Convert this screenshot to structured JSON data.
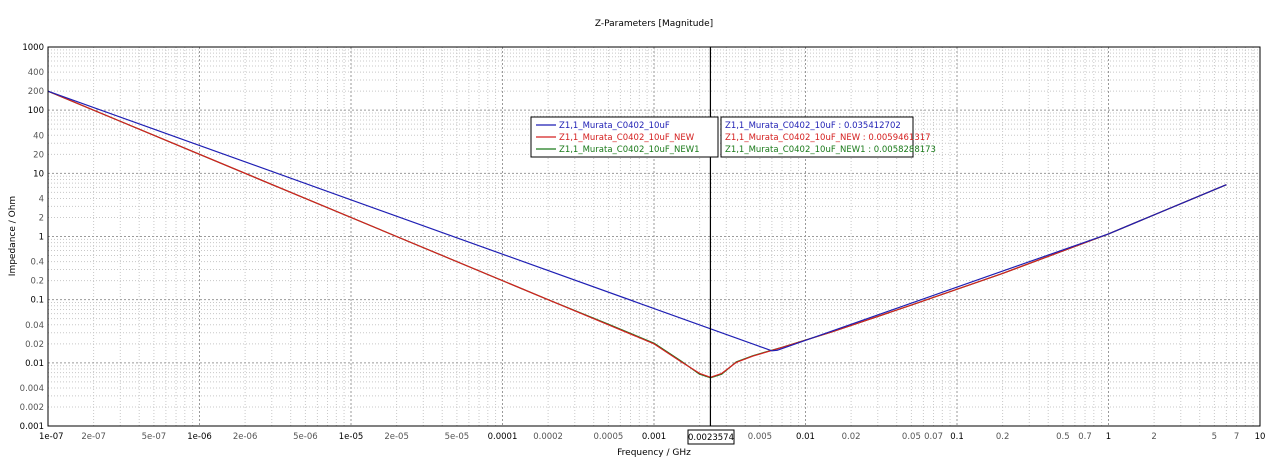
{
  "chart_data": {
    "type": "line",
    "title": "Z-Parameters [Magnitude]",
    "xlabel": "Frequency / GHz",
    "ylabel": "Impedance / Ohm",
    "xscale": "log",
    "yscale": "log",
    "xlim": [
      1e-07,
      10
    ],
    "ylim": [
      0.001,
      1000
    ],
    "grid": true,
    "x_ticks": [
      {
        "value": 1e-07,
        "label": "1e-07",
        "bold": true
      },
      {
        "value": 2e-07,
        "label": "2e-07",
        "bold": false
      },
      {
        "value": 5e-07,
        "label": "5e-07",
        "bold": false
      },
      {
        "value": 1e-06,
        "label": "1e-06",
        "bold": true
      },
      {
        "value": 2e-06,
        "label": "2e-06",
        "bold": false
      },
      {
        "value": 5e-06,
        "label": "5e-06",
        "bold": false
      },
      {
        "value": 1e-05,
        "label": "1e-05",
        "bold": true
      },
      {
        "value": 2e-05,
        "label": "2e-05",
        "bold": false
      },
      {
        "value": 5e-05,
        "label": "5e-05",
        "bold": false
      },
      {
        "value": 0.0001,
        "label": "0.0001",
        "bold": true
      },
      {
        "value": 0.0002,
        "label": "0.0002",
        "bold": false
      },
      {
        "value": 0.0005,
        "label": "0.0005",
        "bold": false
      },
      {
        "value": 0.001,
        "label": "0.001",
        "bold": true
      },
      {
        "value": 0.005,
        "label": "0.005",
        "bold": false
      },
      {
        "value": 0.01,
        "label": "0.01",
        "bold": true
      },
      {
        "value": 0.02,
        "label": "0.02",
        "bold": false
      },
      {
        "value": 0.05,
        "label": "0.05",
        "bold": false
      },
      {
        "value": 0.07,
        "label": "0.07",
        "bold": false
      },
      {
        "value": 0.1,
        "label": "0.1",
        "bold": true
      },
      {
        "value": 0.2,
        "label": "0.2",
        "bold": false
      },
      {
        "value": 0.5,
        "label": "0.5",
        "bold": false
      },
      {
        "value": 0.7,
        "label": "0.7",
        "bold": false
      },
      {
        "value": 1,
        "label": "1",
        "bold": true
      },
      {
        "value": 2,
        "label": "2",
        "bold": false
      },
      {
        "value": 5,
        "label": "5",
        "bold": false
      },
      {
        "value": 7,
        "label": "7",
        "bold": false
      },
      {
        "value": 10,
        "label": "10",
        "bold": true
      }
    ],
    "y_ticks": [
      {
        "value": 1000,
        "label": "1000",
        "bold": true
      },
      {
        "value": 400,
        "label": "400",
        "bold": false
      },
      {
        "value": 200,
        "label": "200",
        "bold": false
      },
      {
        "value": 100,
        "label": "100",
        "bold": true
      },
      {
        "value": 40,
        "label": "40",
        "bold": false
      },
      {
        "value": 20,
        "label": "20",
        "bold": false
      },
      {
        "value": 10,
        "label": "10",
        "bold": true
      },
      {
        "value": 4,
        "label": "4",
        "bold": false
      },
      {
        "value": 2,
        "label": "2",
        "bold": false
      },
      {
        "value": 1,
        "label": "1",
        "bold": true
      },
      {
        "value": 0.4,
        "label": "0.4",
        "bold": false
      },
      {
        "value": 0.2,
        "label": "0.2",
        "bold": false
      },
      {
        "value": 0.1,
        "label": "0.1",
        "bold": true
      },
      {
        "value": 0.04,
        "label": "0.04",
        "bold": false
      },
      {
        "value": 0.02,
        "label": "0.02",
        "bold": false
      },
      {
        "value": 0.01,
        "label": "0.01",
        "bold": true
      },
      {
        "value": 0.004,
        "label": "0.004",
        "bold": false
      },
      {
        "value": 0.002,
        "label": "0.002",
        "bold": false
      },
      {
        "value": 0.001,
        "label": "0.001",
        "bold": true
      }
    ],
    "series": [
      {
        "name": "Z1,1_Murata_C0402_10uF",
        "color": "#1f1fb4",
        "x": [
          1e-07,
          0.006,
          0.0065,
          1,
          6
        ],
        "y": [
          200,
          0.0155,
          0.0158,
          1.1,
          6.6
        ]
      },
      {
        "name": "Z1,1_Murata_C0402_10uF_NEW",
        "color": "#d42020",
        "x": [
          1e-07,
          0.0002,
          0.0005,
          0.001,
          0.0015,
          0.002,
          0.00236,
          0.0028,
          0.0035,
          0.0045,
          0.007,
          0.015,
          0.05,
          0.2,
          1,
          6
        ],
        "y": [
          200,
          0.1,
          0.04,
          0.02,
          0.0105,
          0.0068,
          0.0059,
          0.0068,
          0.0102,
          0.0128,
          0.0175,
          0.031,
          0.082,
          0.26,
          1.1,
          6.6
        ]
      },
      {
        "name": "Z1,1_Murata_C0402_10uF_NEW1",
        "color": "#1a7a1a",
        "x": [
          1e-07,
          0.0002,
          0.0005,
          0.001,
          0.0015,
          0.002,
          0.00236,
          0.0028,
          0.0035,
          0.0045,
          0.007,
          0.015,
          0.05,
          0.2,
          1,
          6
        ],
        "y": [
          200,
          0.1,
          0.041,
          0.0205,
          0.0108,
          0.0066,
          0.0058,
          0.0066,
          0.0104,
          0.013,
          0.0176,
          0.031,
          0.082,
          0.26,
          1.1,
          6.6
        ]
      }
    ],
    "legend_position": "center",
    "marker": {
      "x": 0.0023574,
      "label": "0.0023574",
      "readouts": [
        {
          "series": "Z1,1_Murata_C0402_10uF",
          "text": "Z1,1_Murata_C0402_10uF : 0.035412702",
          "color": "#1f1fb4"
        },
        {
          "series": "Z1,1_Murata_C0402_10uF_NEW",
          "text": "Z1,1_Murata_C0402_10uF_NEW : 0.0059461317",
          "color": "#d42020"
        },
        {
          "series": "Z1,1_Murata_C0402_10uF_NEW1",
          "text": "Z1,1_Murata_C0402_10uF_NEW1 : 0.0058288173",
          "color": "#1a7a1a"
        }
      ]
    }
  }
}
